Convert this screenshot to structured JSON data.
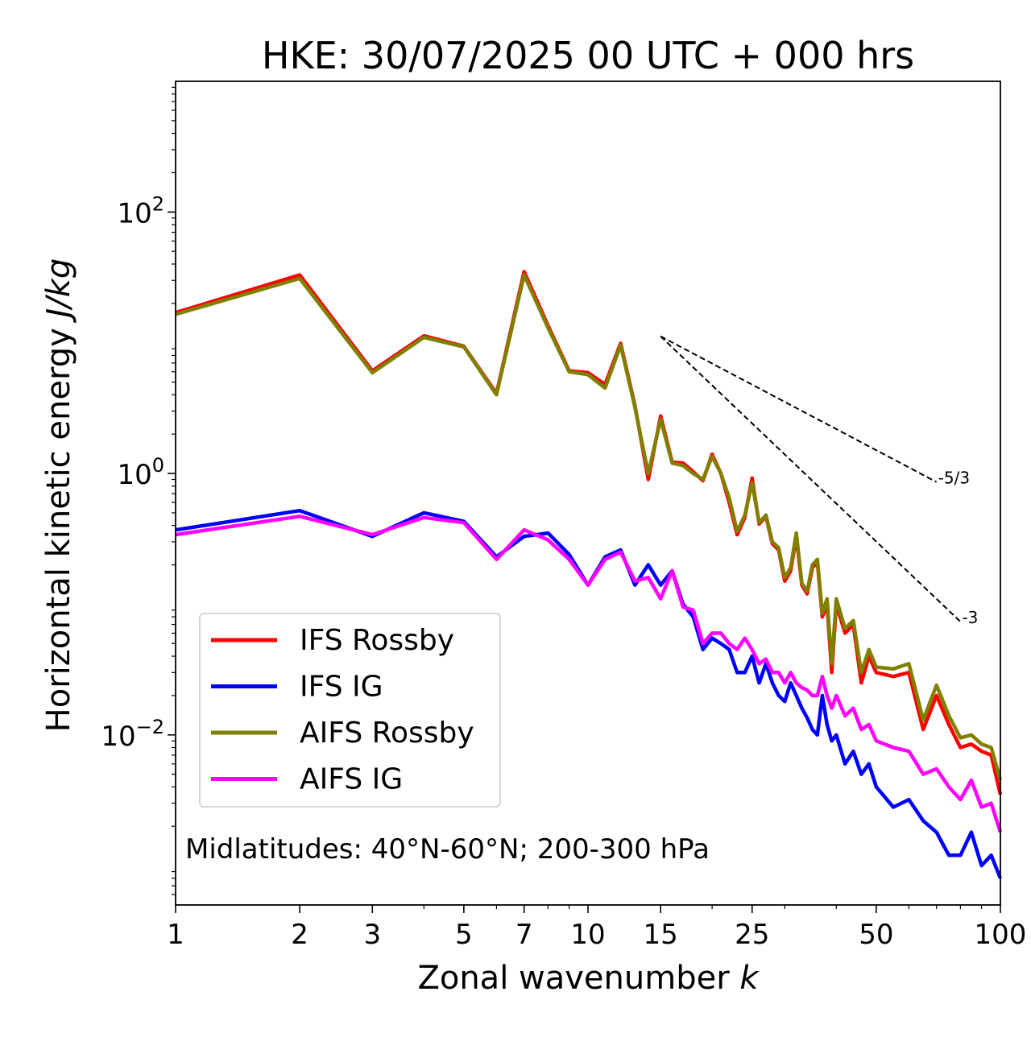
{
  "chart_data": {
    "type": "line",
    "title": "HKE: 30/07/2025 00 UTC + 000 hrs",
    "xlabel": "Zonal wavenumber",
    "xlabel_var": "k",
    "ylabel": "Horizontal kinetic energy",
    "ylabel_units": "J/kg",
    "xscale": "log",
    "yscale": "log",
    "xlim": [
      1,
      100
    ],
    "ylim": [
      0.0005,
      1000
    ],
    "x_ticks": [
      1,
      2,
      3,
      5,
      7,
      10,
      15,
      25,
      50,
      100
    ],
    "x_tick_labels": [
      "1",
      "2",
      "3",
      "5",
      "7",
      "10",
      "15",
      "25",
      "50",
      "100"
    ],
    "y_ticks": [
      0.01,
      1,
      100
    ],
    "y_tick_labels": [
      {
        "base": "10",
        "exp": "−2"
      },
      {
        "base": "10",
        "exp": "0"
      },
      {
        "base": "10",
        "exp": "2"
      }
    ],
    "annotation": "Midlatitudes: 40°N-60°N; 200-300 hPa",
    "legend_position": "lower-left",
    "reference_slopes": [
      {
        "label": "-5/3",
        "x": [
          15,
          70
        ],
        "y": [
          11.2,
          0.86
        ]
      },
      {
        "label": "-3",
        "x": [
          15,
          80
        ],
        "y": [
          11.2,
          0.0735
        ]
      }
    ],
    "series": [
      {
        "name": "IFS Rossby",
        "color": "#ff0000",
        "x": [
          1,
          2,
          3,
          4,
          5,
          6,
          7,
          8,
          9,
          10,
          11,
          12,
          13,
          14,
          15,
          16,
          17,
          18,
          19,
          20,
          21,
          22,
          23,
          24,
          25,
          26,
          27,
          28,
          29,
          30,
          31,
          32,
          33,
          34,
          35,
          36,
          37,
          38,
          39,
          40,
          42,
          44,
          46,
          48,
          50,
          55,
          60,
          65,
          70,
          75,
          80,
          85,
          90,
          95,
          100
        ],
        "y": [
          17,
          33,
          6.1,
          11.3,
          9.4,
          4.1,
          35,
          13.5,
          6.1,
          5.9,
          4.8,
          9.9,
          3.3,
          0.9,
          2.75,
          1.22,
          1.2,
          1.03,
          0.88,
          1.4,
          1.0,
          0.6,
          0.34,
          0.46,
          0.92,
          0.41,
          0.47,
          0.29,
          0.26,
          0.15,
          0.18,
          0.33,
          0.14,
          0.12,
          0.19,
          0.21,
          0.08,
          0.1,
          0.03,
          0.1,
          0.06,
          0.07,
          0.025,
          0.04,
          0.03,
          0.028,
          0.03,
          0.011,
          0.02,
          0.012,
          0.008,
          0.0085,
          0.0075,
          0.007,
          0.0035
        ]
      },
      {
        "name": "IFS IG",
        "color": "#0000ff",
        "x": [
          1,
          2,
          3,
          4,
          5,
          6,
          7,
          8,
          9,
          10,
          11,
          12,
          13,
          14,
          15,
          16,
          17,
          18,
          19,
          20,
          21,
          22,
          23,
          24,
          25,
          26,
          27,
          28,
          29,
          30,
          31,
          32,
          33,
          34,
          35,
          36,
          37,
          38,
          39,
          40,
          42,
          44,
          46,
          48,
          50,
          55,
          60,
          65,
          70,
          75,
          80,
          85,
          90,
          95,
          100
        ],
        "y": [
          0.37,
          0.52,
          0.33,
          0.5,
          0.43,
          0.23,
          0.33,
          0.35,
          0.24,
          0.14,
          0.23,
          0.26,
          0.14,
          0.2,
          0.14,
          0.18,
          0.1,
          0.08,
          0.045,
          0.055,
          0.05,
          0.045,
          0.03,
          0.03,
          0.04,
          0.025,
          0.035,
          0.025,
          0.02,
          0.018,
          0.025,
          0.02,
          0.016,
          0.0135,
          0.011,
          0.01,
          0.02,
          0.012,
          0.009,
          0.01,
          0.006,
          0.0075,
          0.005,
          0.006,
          0.004,
          0.0028,
          0.0032,
          0.0022,
          0.0018,
          0.0012,
          0.0012,
          0.0018,
          0.001,
          0.0012,
          0.0008
        ]
      },
      {
        "name": "AIFS Rossby",
        "color": "#808000",
        "x": [
          1,
          2,
          3,
          4,
          5,
          6,
          7,
          8,
          9,
          10,
          11,
          12,
          13,
          14,
          15,
          16,
          17,
          18,
          19,
          20,
          21,
          22,
          23,
          24,
          25,
          26,
          27,
          28,
          29,
          30,
          31,
          32,
          33,
          34,
          35,
          36,
          37,
          38,
          39,
          40,
          42,
          44,
          46,
          48,
          50,
          55,
          60,
          65,
          70,
          75,
          80,
          85,
          90,
          95,
          100
        ],
        "y": [
          16.5,
          31,
          5.9,
          11,
          9.3,
          4,
          33,
          13,
          6,
          5.7,
          4.5,
          9.6,
          3.2,
          1.0,
          2.6,
          1.2,
          1.15,
          1.0,
          0.9,
          1.35,
          1.0,
          0.65,
          0.36,
          0.48,
          0.85,
          0.42,
          0.48,
          0.3,
          0.27,
          0.16,
          0.19,
          0.35,
          0.145,
          0.125,
          0.2,
          0.22,
          0.085,
          0.11,
          0.035,
          0.11,
          0.065,
          0.075,
          0.03,
          0.045,
          0.033,
          0.032,
          0.035,
          0.013,
          0.024,
          0.014,
          0.0095,
          0.01,
          0.0085,
          0.008,
          0.0045
        ]
      },
      {
        "name": "AIFS IG",
        "color": "#ff00ff",
        "x": [
          1,
          2,
          3,
          4,
          5,
          6,
          7,
          8,
          9,
          10,
          11,
          12,
          13,
          14,
          15,
          16,
          17,
          18,
          19,
          20,
          21,
          22,
          23,
          24,
          25,
          26,
          27,
          28,
          29,
          30,
          31,
          32,
          33,
          34,
          35,
          36,
          37,
          38,
          39,
          40,
          42,
          44,
          46,
          48,
          50,
          55,
          60,
          65,
          70,
          75,
          80,
          85,
          90,
          95,
          100
        ],
        "y": [
          0.34,
          0.47,
          0.34,
          0.46,
          0.42,
          0.22,
          0.37,
          0.31,
          0.22,
          0.14,
          0.22,
          0.25,
          0.15,
          0.16,
          0.11,
          0.18,
          0.095,
          0.09,
          0.05,
          0.06,
          0.06,
          0.05,
          0.045,
          0.055,
          0.045,
          0.035,
          0.038,
          0.03,
          0.03,
          0.025,
          0.03,
          0.025,
          0.023,
          0.022,
          0.02,
          0.02,
          0.028,
          0.02,
          0.016,
          0.02,
          0.014,
          0.016,
          0.011,
          0.012,
          0.009,
          0.008,
          0.0075,
          0.005,
          0.0055,
          0.004,
          0.0032,
          0.0045,
          0.0028,
          0.003,
          0.0018
        ]
      }
    ]
  }
}
